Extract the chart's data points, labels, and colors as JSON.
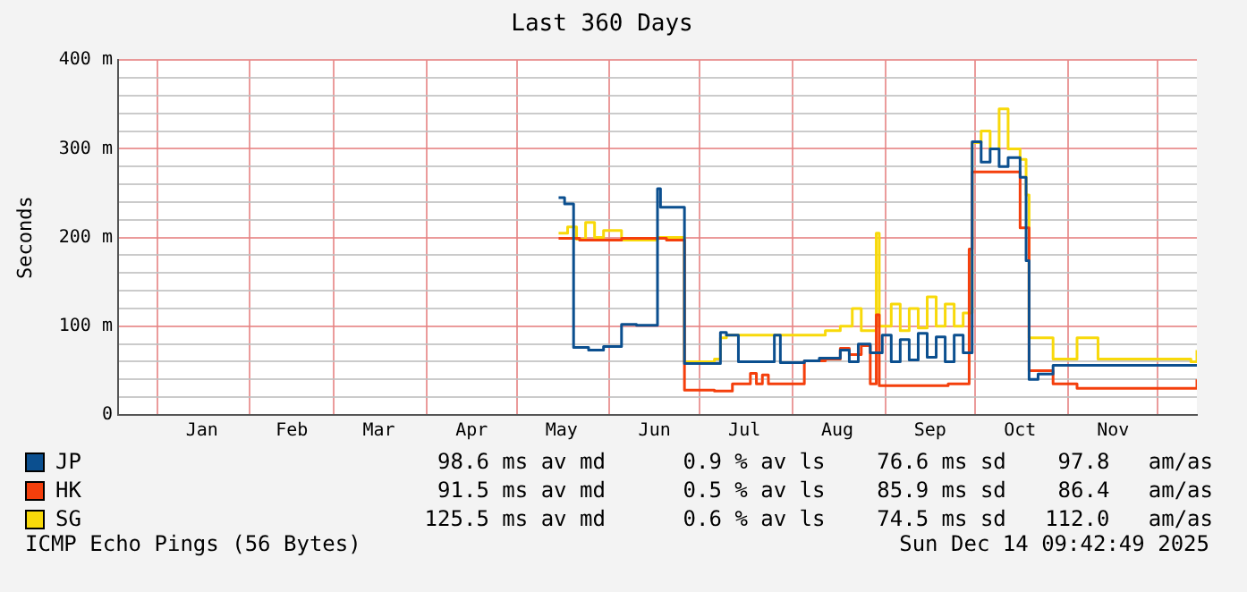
{
  "chart_data": {
    "type": "step",
    "title": "Last 360 Days",
    "ylabel": "Seconds",
    "xlim": [
      "2024-12-19",
      "2025-12-14"
    ],
    "xticks": [
      {
        "value": "2025-01-01",
        "label": null
      },
      {
        "value": "2025-01-16",
        "label": "Jan"
      },
      {
        "value": "2025-02-01",
        "label": null
      },
      {
        "value": "2025-02-15",
        "label": "Feb"
      },
      {
        "value": "2025-03-01",
        "label": null
      },
      {
        "value": "2025-03-16",
        "label": "Mar"
      },
      {
        "value": "2025-04-01",
        "label": null
      },
      {
        "value": "2025-04-16",
        "label": "Apr"
      },
      {
        "value": "2025-05-01",
        "label": null
      },
      {
        "value": "2025-05-16",
        "label": "May"
      },
      {
        "value": "2025-06-01",
        "label": null
      },
      {
        "value": "2025-06-16",
        "label": "Jun"
      },
      {
        "value": "2025-07-01",
        "label": null
      },
      {
        "value": "2025-07-16",
        "label": "Jul"
      },
      {
        "value": "2025-08-01",
        "label": null
      },
      {
        "value": "2025-08-16",
        "label": "Aug"
      },
      {
        "value": "2025-09-01",
        "label": null
      },
      {
        "value": "2025-09-16",
        "label": "Sep"
      },
      {
        "value": "2025-10-01",
        "label": null
      },
      {
        "value": "2025-10-16",
        "label": "Oct"
      },
      {
        "value": "2025-11-01",
        "label": null
      },
      {
        "value": "2025-11-16",
        "label": "Nov"
      },
      {
        "value": "2025-12-01",
        "label": null
      }
    ],
    "ylim": [
      0,
      400
    ],
    "yticks": [
      0,
      {
        "value": 20,
        "label": null
      },
      {
        "value": 40,
        "label": null
      },
      {
        "value": 60,
        "label": null
      },
      {
        "value": 80,
        "label": null
      },
      {
        "value": 100,
        "label": "100 m"
      },
      {
        "value": 120,
        "label": null
      },
      {
        "value": 140,
        "label": null
      },
      {
        "value": 160,
        "label": null
      },
      {
        "value": 180,
        "label": null
      },
      {
        "value": 200,
        "label": "200 m"
      },
      {
        "value": 220,
        "label": null
      },
      {
        "value": 240,
        "label": null
      },
      {
        "value": 260,
        "label": null
      },
      {
        "value": 280,
        "label": null
      },
      {
        "value": 300,
        "label": "300 m"
      },
      {
        "value": 320,
        "label": null
      },
      {
        "value": 340,
        "label": null
      },
      {
        "value": 360,
        "label": null
      },
      {
        "value": 380,
        "label": null
      },
      {
        "value": 400,
        "label": "400 m"
      }
    ],
    "grid": true,
    "legend": "bottom",
    "series": [
      {
        "name": "JP",
        "color": "#0b4f8f",
        "x": [
          "2025-05-15",
          "2025-05-17",
          "2025-05-20",
          "2025-05-25",
          "2025-05-30",
          "2025-06-05",
          "2025-06-10",
          "2025-06-17",
          "2025-06-18",
          "2025-06-26",
          "2025-07-08",
          "2025-07-10",
          "2025-07-14",
          "2025-07-26",
          "2025-07-28",
          "2025-08-05",
          "2025-08-10",
          "2025-08-17",
          "2025-08-20",
          "2025-08-23",
          "2025-08-27",
          "2025-08-31",
          "2025-09-03",
          "2025-09-06",
          "2025-09-09",
          "2025-09-12",
          "2025-09-15",
          "2025-09-18",
          "2025-09-21",
          "2025-09-24",
          "2025-09-27",
          "2025-09-30",
          "2025-10-03",
          "2025-10-06",
          "2025-10-09",
          "2025-10-12",
          "2025-10-16",
          "2025-10-18",
          "2025-10-19",
          "2025-10-22",
          "2025-10-27",
          "2025-12-14"
        ],
        "values": [
          245,
          238,
          76,
          73,
          77,
          102,
          101,
          255,
          234,
          58,
          93,
          90,
          60,
          90,
          59,
          61,
          64,
          73,
          60,
          80,
          70,
          90,
          60,
          85,
          62,
          92,
          65,
          88,
          60,
          90,
          70,
          308,
          285,
          300,
          280,
          290,
          268,
          174,
          40,
          46,
          56,
          56
        ]
      },
      {
        "name": "HK",
        "color": "#f43f0c",
        "x": [
          "2025-05-15",
          "2025-05-22",
          "2025-06-05",
          "2025-06-20",
          "2025-06-26",
          "2025-07-06",
          "2025-07-12",
          "2025-07-18",
          "2025-07-20",
          "2025-07-22",
          "2025-07-24",
          "2025-08-05",
          "2025-08-12",
          "2025-08-17",
          "2025-08-20",
          "2025-08-24",
          "2025-08-27",
          "2025-08-29",
          "2025-08-30",
          "2025-09-15",
          "2025-09-22",
          "2025-09-29",
          "2025-09-30",
          "2025-10-16",
          "2025-10-19",
          "2025-10-27",
          "2025-11-04",
          "2025-12-12",
          "2025-12-14"
        ],
        "values": [
          199,
          197,
          199,
          197,
          28,
          27,
          35,
          47,
          35,
          45,
          35,
          61,
          63,
          75,
          68,
          78,
          35,
          113,
          33,
          33,
          35,
          187,
          274,
          211,
          50,
          35,
          30,
          30,
          40
        ]
      },
      {
        "name": "SG",
        "color": "#f8d90a",
        "x": [
          "2025-05-15",
          "2025-05-18",
          "2025-05-21",
          "2025-05-24",
          "2025-05-27",
          "2025-05-30",
          "2025-06-05",
          "2025-06-17",
          "2025-06-26",
          "2025-07-06",
          "2025-07-08",
          "2025-07-10",
          "2025-08-05",
          "2025-08-12",
          "2025-08-17",
          "2025-08-21",
          "2025-08-24",
          "2025-08-29",
          "2025-08-30",
          "2025-09-03",
          "2025-09-06",
          "2025-09-09",
          "2025-09-12",
          "2025-09-15",
          "2025-09-18",
          "2025-09-21",
          "2025-09-24",
          "2025-09-27",
          "2025-09-30",
          "2025-10-03",
          "2025-10-06",
          "2025-10-09",
          "2025-10-12",
          "2025-10-16",
          "2025-10-18",
          "2025-10-19",
          "2025-10-27",
          "2025-11-04",
          "2025-11-11",
          "2025-12-12",
          "2025-12-14"
        ],
        "values": [
          205,
          212,
          198,
          217,
          200,
          208,
          197,
          200,
          60,
          63,
          87,
          90,
          90,
          95,
          100,
          120,
          95,
          205,
          100,
          125,
          95,
          120,
          98,
          133,
          100,
          125,
          100,
          115,
          307,
          320,
          300,
          345,
          300,
          288,
          248,
          87,
          63,
          87,
          63,
          60,
          73
        ]
      }
    ],
    "annotations": [
      "98.6 ms av md      0.9 % av ls    76.6 ms sd    97.8   am/as",
      "91.5 ms av md      0.5 % av ls    85.9 ms sd    86.4   am/as",
      "125.5 ms av md      0.6 % av ls    74.5 ms sd   112.0   am/as",
      "ICMP Echo Pings (56 Bytes)",
      "Sun Dec 14 09:42:49 2025"
    ]
  }
}
